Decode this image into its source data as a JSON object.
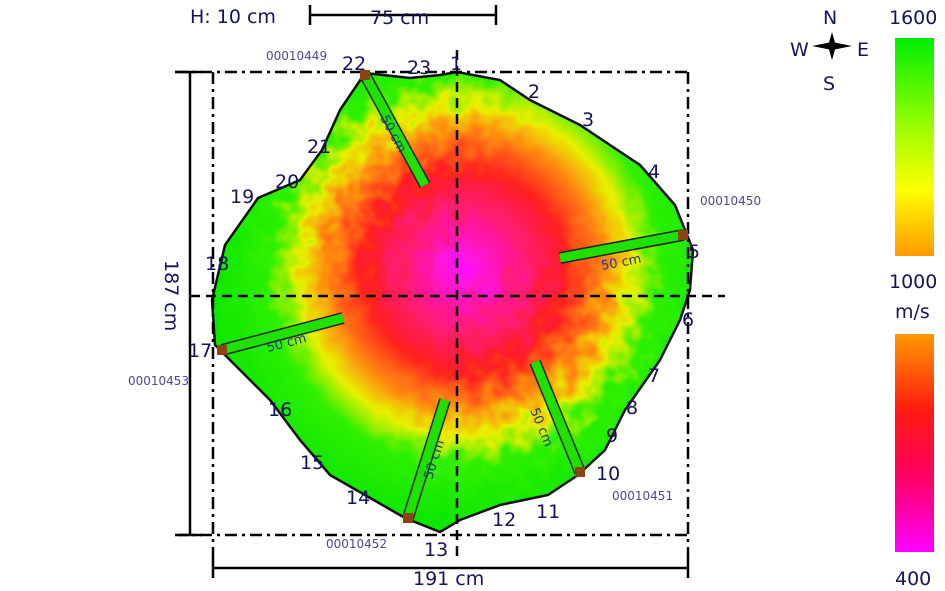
{
  "header": {
    "height_label": "H: 10 cm",
    "scale_label": "75 cm"
  },
  "compass": {
    "n": "N",
    "s": "S",
    "w": "W",
    "e": "E"
  },
  "dimensions": {
    "vertical": "187 cm",
    "horizontal": "191 cm"
  },
  "sensors": [
    "1",
    "2",
    "3",
    "4",
    "5",
    "6",
    "7",
    "8",
    "9",
    "10",
    "11",
    "12",
    "13",
    "14",
    "15",
    "16",
    "17",
    "18",
    "19",
    "20",
    "21",
    "22",
    "23"
  ],
  "drills": [
    {
      "id": "00010449",
      "length": "50 cm"
    },
    {
      "id": "00010450",
      "length": "50 cm"
    },
    {
      "id": "00010451",
      "length": "50 cm"
    },
    {
      "id": "00010452",
      "length": "50 cm"
    },
    {
      "id": "00010453",
      "length": "50 cm"
    }
  ],
  "legend": {
    "max": "1600",
    "mid": "1000",
    "unit": "m/s",
    "min": "400",
    "colors": {
      "green": "#00ee00",
      "yellow": "#eeee00",
      "orange": "#ff9900",
      "red": "#ff1010",
      "magenta": "#ff00ff"
    }
  }
}
